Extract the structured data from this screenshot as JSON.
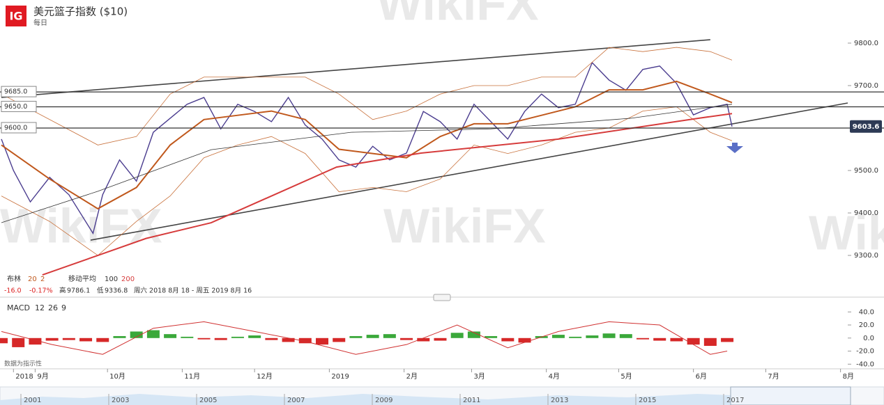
{
  "header": {
    "title": "美元篮子指数 ($10)",
    "interval": "每日",
    "logo": "IG",
    "watermark": "WikiFX"
  },
  "legend": {
    "bb_label": "布林",
    "bb_p1": 20,
    "bb_p2": 2,
    "ma_label": "移动平均",
    "ma_p1": 100,
    "ma_p2": 200,
    "change": "-16.0",
    "pct": "-0.17%",
    "high_label": "高",
    "high": 9786.1,
    "low_label": "低",
    "low": 9336.8,
    "range": "周六 2018 8月 18 - 周五 2019 8月 16"
  },
  "footnote": "数据为指示性",
  "navigator": {
    "labels": [
      "2001",
      "2003",
      "2005",
      "2007",
      "2009",
      "2011",
      "2013",
      "2015",
      "2017"
    ]
  },
  "chart_data": [
    {
      "type": "line",
      "xlim": [
        0,
        351
      ],
      "ylim": [
        9205,
        9836
      ],
      "xticks": [
        {
          "value": 5,
          "label": "2018"
        },
        {
          "value": 14,
          "label": "9月"
        },
        {
          "value": 44,
          "label": "10月"
        },
        {
          "value": 75,
          "label": "11月"
        },
        {
          "value": 105,
          "label": "12月"
        },
        {
          "value": 136,
          "label": "2019"
        },
        {
          "value": 167,
          "label": "2月"
        },
        {
          "value": 195,
          "label": "3月"
        },
        {
          "value": 226,
          "label": "4月"
        },
        {
          "value": 256,
          "label": "5月"
        },
        {
          "value": 287,
          "label": "6月"
        },
        {
          "value": 317,
          "label": "7月"
        },
        {
          "value": 348,
          "label": "8月"
        }
      ],
      "yticks": [
        {
          "value": 9300,
          "label": "9300.0"
        },
        {
          "value": 9400,
          "label": "9400.0"
        },
        {
          "value": 9500,
          "label": "9500.0"
        },
        {
          "value": 9600,
          "label": "9600.0"
        },
        {
          "value": 9700,
          "label": "9700.0"
        },
        {
          "value": 9800,
          "label": "9800.0"
        }
      ],
      "levels": [
        {
          "value": 9685,
          "label": "9685.0"
        },
        {
          "value": 9650,
          "label": "9650.0"
        },
        {
          "value": 9600,
          "label": "9600.0"
        }
      ],
      "last_price": 9603.6,
      "trendlines": [
        {
          "x": [
            0,
            294
          ],
          "y": [
            9672,
            9808
          ]
        },
        {
          "x": [
            37,
            351
          ],
          "y": [
            9336,
            9659
          ]
        }
      ],
      "series": [
        {
          "role": "price",
          "color": "#4b3d8f",
          "width": 1.4,
          "x": [
            0,
            5,
            12,
            20,
            28,
            38,
            42,
            49,
            56,
            63,
            70,
            77,
            84,
            91,
            98,
            105,
            112,
            119,
            126,
            133,
            140,
            147,
            154,
            161,
            168,
            175,
            182,
            189,
            196,
            203,
            210,
            217,
            224,
            231,
            238,
            245,
            252,
            259,
            266,
            273,
            280,
            287,
            294,
            301,
            303
          ],
          "values": [
            9574,
            9500,
            9426,
            9484,
            9443,
            9352,
            9443,
            9525,
            9475,
            9590,
            9623,
            9656,
            9672,
            9598,
            9656,
            9639,
            9615,
            9672,
            9607,
            9574,
            9525,
            9508,
            9557,
            9525,
            9541,
            9639,
            9615,
            9574,
            9656,
            9615,
            9574,
            9639,
            9680,
            9648,
            9656,
            9754,
            9713,
            9689,
            9738,
            9746,
            9705,
            9631,
            9648,
            9656,
            9603.6
          ]
        },
        {
          "role": "bb-upper",
          "color": "#c8703a",
          "width": 0.8,
          "x": [
            0,
            20,
            40,
            56,
            70,
            84,
            98,
            112,
            126,
            140,
            154,
            168,
            182,
            196,
            210,
            224,
            238,
            252,
            266,
            280,
            294,
            303
          ],
          "values": [
            9680,
            9620,
            9560,
            9580,
            9680,
            9720,
            9720,
            9720,
            9720,
            9680,
            9620,
            9640,
            9680,
            9700,
            9700,
            9720,
            9720,
            9790,
            9780,
            9790,
            9780,
            9760
          ]
        },
        {
          "role": "bb-lower",
          "color": "#c8703a",
          "width": 0.8,
          "x": [
            0,
            20,
            40,
            56,
            70,
            84,
            98,
            112,
            126,
            140,
            154,
            168,
            182,
            196,
            210,
            224,
            238,
            252,
            266,
            280,
            294,
            303
          ],
          "values": [
            9440,
            9380,
            9300,
            9380,
            9440,
            9530,
            9560,
            9580,
            9540,
            9450,
            9460,
            9450,
            9480,
            9560,
            9540,
            9560,
            9590,
            9600,
            9640,
            9650,
            9590,
            9570
          ]
        },
        {
          "role": "bb-mid",
          "color": "#c0581c",
          "width": 2,
          "x": [
            0,
            20,
            40,
            56,
            70,
            84,
            98,
            112,
            126,
            140,
            154,
            168,
            182,
            196,
            210,
            224,
            238,
            252,
            266,
            280,
            294,
            303
          ],
          "values": [
            9560,
            9480,
            9410,
            9460,
            9560,
            9620,
            9630,
            9640,
            9620,
            9550,
            9540,
            9530,
            9580,
            9610,
            9610,
            9630,
            9650,
            9690,
            9690,
            9710,
            9680,
            9660
          ]
        },
        {
          "role": "ma100",
          "color": "#333333",
          "width": 0.8,
          "x": [
            0,
            40,
            87,
            145,
            203,
            261,
            303
          ],
          "values": [
            9377,
            9451,
            9549,
            9590,
            9598,
            9623,
            9656
          ]
        },
        {
          "role": "ma200",
          "color": "#d63b3b",
          "width": 2,
          "x": [
            17,
            40,
            60,
            87,
            139,
            174,
            231,
            289,
            303
          ],
          "values": [
            9254,
            9300,
            9340,
            9377,
            9508,
            9541,
            9574,
            9623,
            9634
          ]
        }
      ]
    },
    {
      "type": "bar",
      "title": "MACD",
      "p1": 12,
      "p2": 26,
      "p3": 9,
      "xlim": [
        0,
        351
      ],
      "ylim": [
        -45,
        52
      ],
      "yticks": [
        {
          "value": 40,
          "label": "40.0"
        },
        {
          "value": 20,
          "label": "20.0"
        },
        {
          "value": 0,
          "label": "0.0"
        },
        {
          "value": -20,
          "label": "-20.0"
        },
        {
          "value": -40,
          "label": "-40.0"
        }
      ],
      "up_color": "#3aa83a",
      "down_color": "#d62828",
      "x": [
        0,
        7,
        14,
        21,
        28,
        35,
        42,
        49,
        56,
        63,
        70,
        77,
        84,
        91,
        98,
        105,
        112,
        119,
        126,
        133,
        140,
        147,
        154,
        161,
        168,
        175,
        182,
        189,
        196,
        203,
        210,
        217,
        224,
        231,
        238,
        245,
        252,
        259,
        266,
        273,
        280,
        287,
        294,
        301
      ],
      "values": [
        -8,
        -14,
        -10,
        -4,
        -3,
        -5,
        -6,
        3,
        10,
        12,
        6,
        2,
        -2,
        -3,
        2,
        4,
        -3,
        -6,
        -8,
        -10,
        -6,
        3,
        5,
        6,
        -3,
        -5,
        -4,
        8,
        10,
        3,
        -5,
        -7,
        3,
        5,
        2,
        4,
        7,
        6,
        -2,
        -4,
        -5,
        -10,
        -12,
        -6
      ],
      "line": {
        "color": "#d03030",
        "x": [
          0,
          21,
          42,
          63,
          84,
          105,
          126,
          147,
          168,
          189,
          210,
          231,
          252,
          273,
          294,
          301
        ],
        "values": [
          10,
          -10,
          -25,
          15,
          25,
          10,
          -5,
          -25,
          -10,
          20,
          -15,
          10,
          25,
          20,
          -25,
          -20
        ]
      }
    }
  ]
}
